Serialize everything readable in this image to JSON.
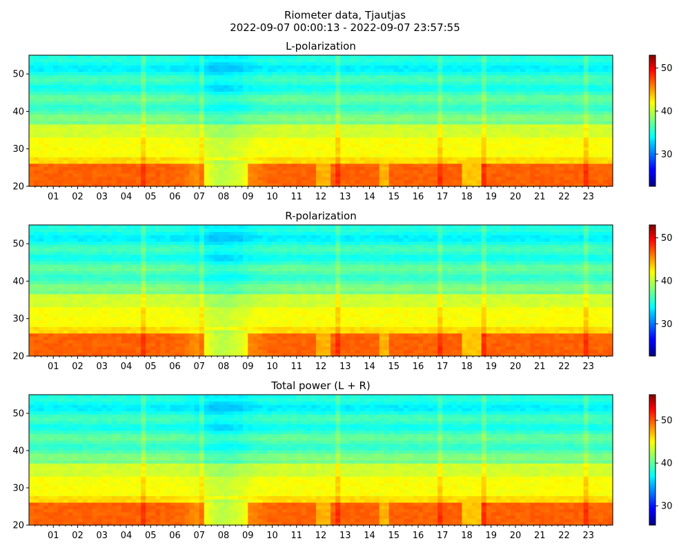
{
  "figure": {
    "title_line1": "Riometer data, Tjautjas",
    "title_line2": "2022-09-07 00:00:13 - 2022-09-07 23:57:55"
  },
  "chart_data": [
    {
      "type": "heatmap",
      "title": "L-polarization",
      "colormap": "jet",
      "x_range_hours": [
        0,
        24
      ],
      "x_tick_labels": [
        "01",
        "02",
        "03",
        "04",
        "05",
        "06",
        "07",
        "08",
        "09",
        "10",
        "11",
        "12",
        "13",
        "14",
        "15",
        "16",
        "17",
        "18",
        "19",
        "20",
        "21",
        "22",
        "23"
      ],
      "ylim": [
        20,
        55
      ],
      "y_ticks": [
        20,
        30,
        40,
        50
      ],
      "colorbar_range": [
        22.5,
        53
      ],
      "colorbar_ticks": [
        30,
        40,
        50
      ],
      "value_range": [
        30,
        50
      ]
    },
    {
      "type": "heatmap",
      "title": "R-polarization",
      "colormap": "jet",
      "x_range_hours": [
        0,
        24
      ],
      "x_tick_labels": [
        "01",
        "02",
        "03",
        "04",
        "05",
        "06",
        "07",
        "08",
        "09",
        "10",
        "11",
        "12",
        "13",
        "14",
        "15",
        "16",
        "17",
        "18",
        "19",
        "20",
        "21",
        "22",
        "23"
      ],
      "ylim": [
        20,
        55
      ],
      "y_ticks": [
        20,
        30,
        40,
        50
      ],
      "colorbar_range": [
        22.5,
        53
      ],
      "colorbar_ticks": [
        30,
        40,
        50
      ],
      "value_range": [
        30,
        50
      ]
    },
    {
      "type": "heatmap",
      "title": "Total power (L + R)",
      "colormap": "jet",
      "x_range_hours": [
        0,
        24
      ],
      "x_tick_labels": [
        "01",
        "02",
        "03",
        "04",
        "05",
        "06",
        "07",
        "08",
        "09",
        "10",
        "11",
        "12",
        "13",
        "14",
        "15",
        "16",
        "17",
        "18",
        "19",
        "20",
        "21",
        "22",
        "23"
      ],
      "ylim": [
        20,
        55
      ],
      "y_ticks": [
        20,
        30,
        40,
        50
      ],
      "colorbar_range": [
        25.5,
        56
      ],
      "colorbar_ticks": [
        30,
        40,
        50
      ],
      "value_range": [
        33,
        53
      ]
    }
  ]
}
